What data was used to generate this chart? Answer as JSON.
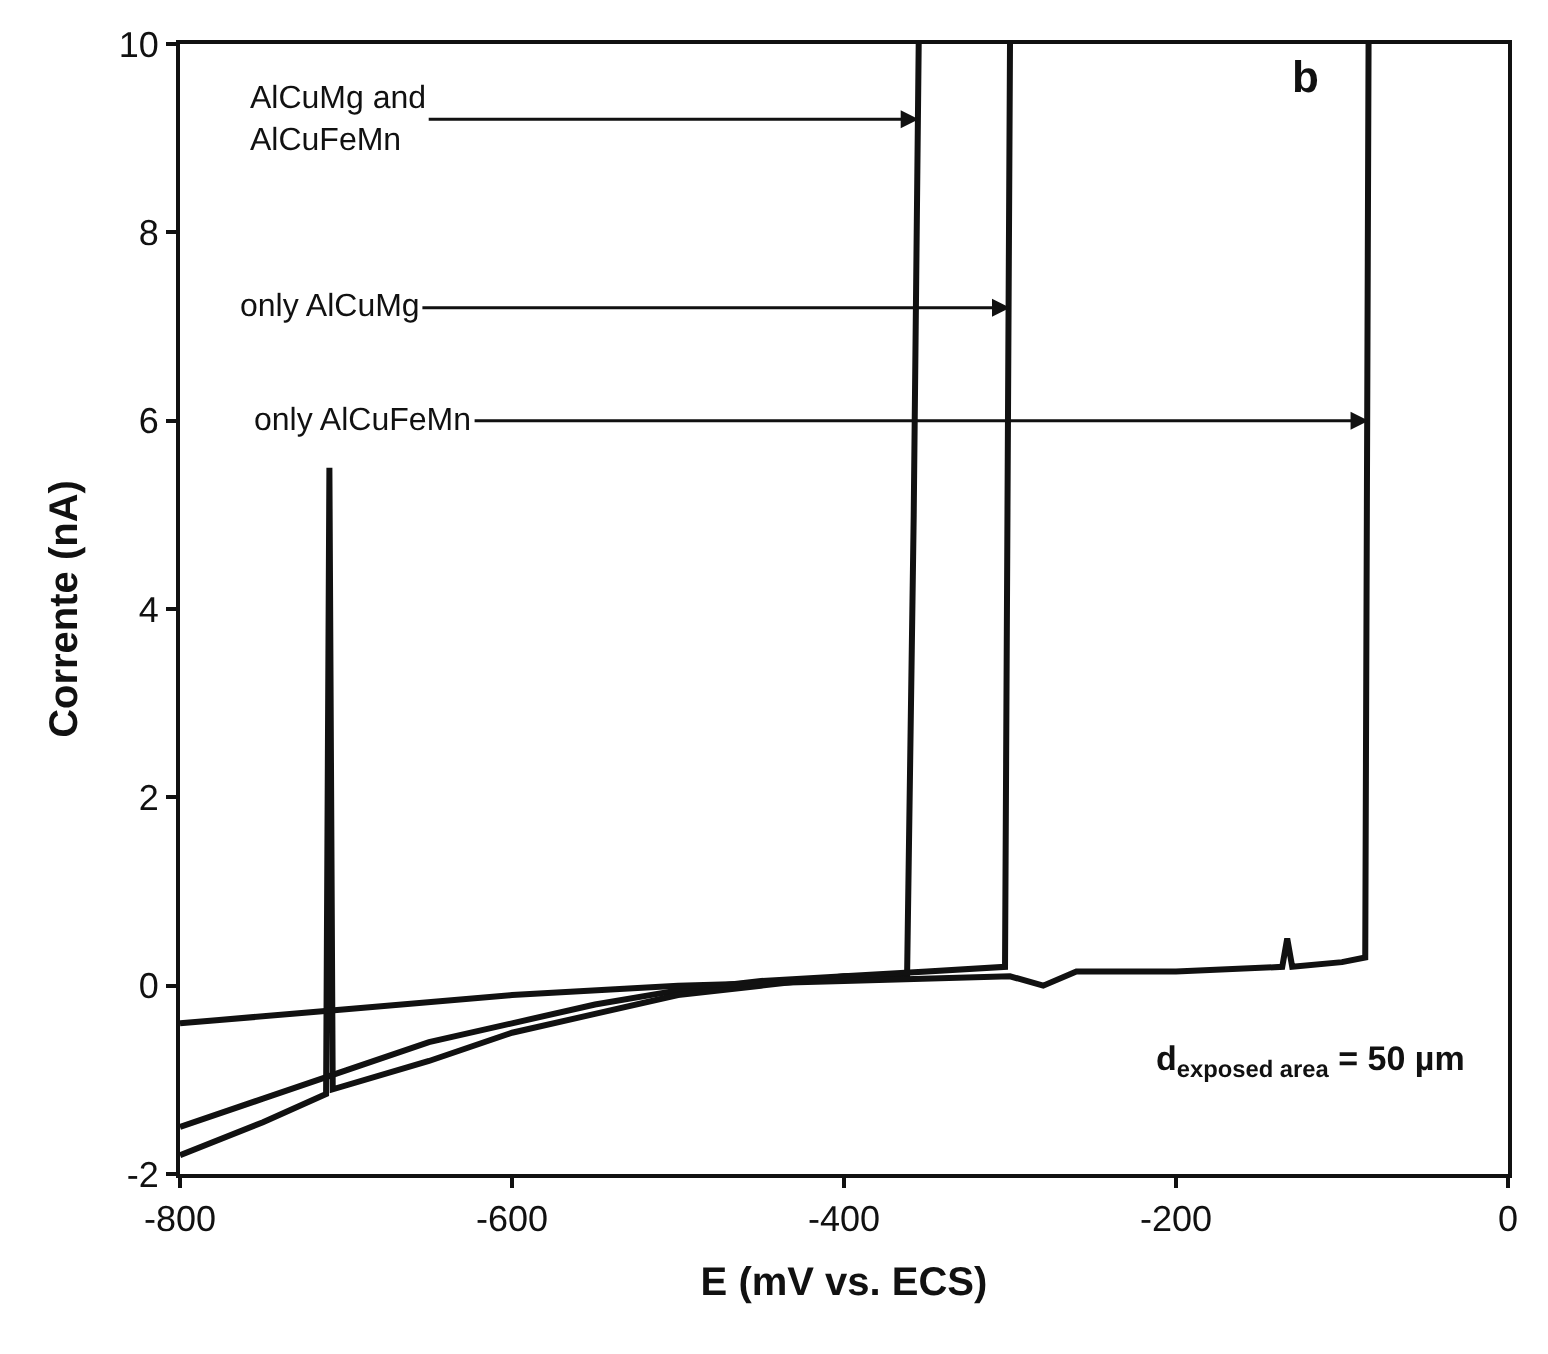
{
  "chart_data": {
    "type": "line",
    "xlabel": "E (mV vs. ECS)",
    "ylabel": "Corrente (nA)",
    "xlim": [
      -800,
      0
    ],
    "xticks": [
      -800,
      -600,
      -400,
      -200,
      0
    ],
    "ylim": [
      -2,
      10
    ],
    "yticks": [
      -2,
      0,
      2,
      4,
      6,
      8,
      10
    ],
    "marker": "none",
    "line_style": "solid",
    "series": [
      {
        "color": "#111111",
        "x": [
          -800,
          -750,
          -700,
          -650,
          -600,
          -550,
          -500,
          -450,
          -400,
          -362,
          -358,
          -355
        ],
        "values": [
          -1.5,
          -1.2,
          -0.9,
          -0.6,
          -0.4,
          -0.2,
          -0.05,
          0.05,
          0.1,
          0.1,
          5,
          10
        ]
      },
      {
        "color": "#111111",
        "x": [
          -800,
          -750,
          -712,
          -710,
          -708,
          -650,
          -600,
          -550,
          -500,
          -450,
          -400,
          -350,
          -303,
          -300
        ],
        "values": [
          -1.8,
          -1.45,
          -1.15,
          5.5,
          -1.1,
          -0.8,
          -0.5,
          -0.3,
          -0.1,
          0,
          0.1,
          0.15,
          0.2,
          10
        ]
      },
      {
        "color": "#111111",
        "x": [
          -800,
          -700,
          -600,
          -500,
          -400,
          -300,
          -280,
          -260,
          -200,
          -136,
          -133,
          -130,
          -100,
          -86,
          -84
        ],
        "values": [
          -0.4,
          -0.25,
          -0.1,
          0,
          0.05,
          0.1,
          0.0,
          0.15,
          0.15,
          0.2,
          0.5,
          0.2,
          0.25,
          0.3,
          10
        ]
      }
    ],
    "annotations": [
      {
        "text": "AlCuMg and\nAlCuFeMn",
        "x": -355,
        "y": 9.2
      },
      {
        "text": "only AlCuMg",
        "x": -300,
        "y": 7.2
      },
      {
        "text": "only AlCuFeMn",
        "x": -84,
        "y": 6.0
      },
      "b",
      "d$_{exposed area}$ = 50 µm"
    ]
  }
}
